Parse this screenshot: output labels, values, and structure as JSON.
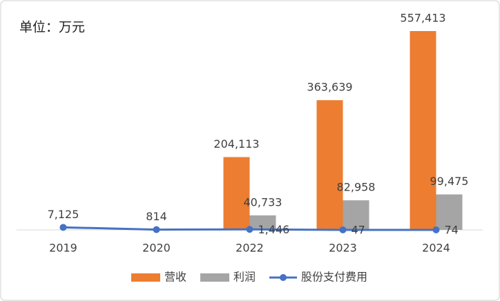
{
  "chart_data": {
    "type": "bar-line",
    "title": "单位：万元",
    "categories": [
      "2019",
      "2020",
      "2022",
      "2023",
      "2024"
    ],
    "series": [
      {
        "name": "营收",
        "type": "bar",
        "color": "#ed7d31",
        "values": [
          null,
          null,
          204113,
          363639,
          557413
        ],
        "value_labels": [
          null,
          null,
          "204,113",
          "363,639",
          "557,413"
        ]
      },
      {
        "name": "利润",
        "type": "bar",
        "color": "#a5a5a5",
        "values": [
          null,
          null,
          40733,
          82958,
          99475
        ],
        "value_labels": [
          null,
          null,
          "40,733",
          "82,958",
          "99,475"
        ]
      },
      {
        "name": "股份支付费用",
        "type": "line",
        "color": "#4472c4",
        "values": [
          7125,
          814,
          1446,
          47,
          74
        ],
        "value_labels": [
          "7,125",
          "814",
          "1,446",
          "47",
          "74"
        ]
      }
    ],
    "ylim": [
      0,
      600000
    ],
    "legend": "bottom"
  }
}
